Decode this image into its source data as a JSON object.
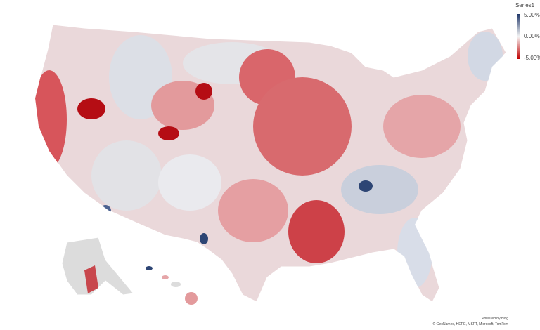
{
  "legend": {
    "title": "Series1",
    "labels": [
      "5.00%",
      "0.00%",
      "-5.00%"
    ]
  },
  "attribution": {
    "powered_by": "Powered by Bing",
    "credits": "© GeoNames, HERE, MSFT, Microsoft, TomTom"
  }
}
